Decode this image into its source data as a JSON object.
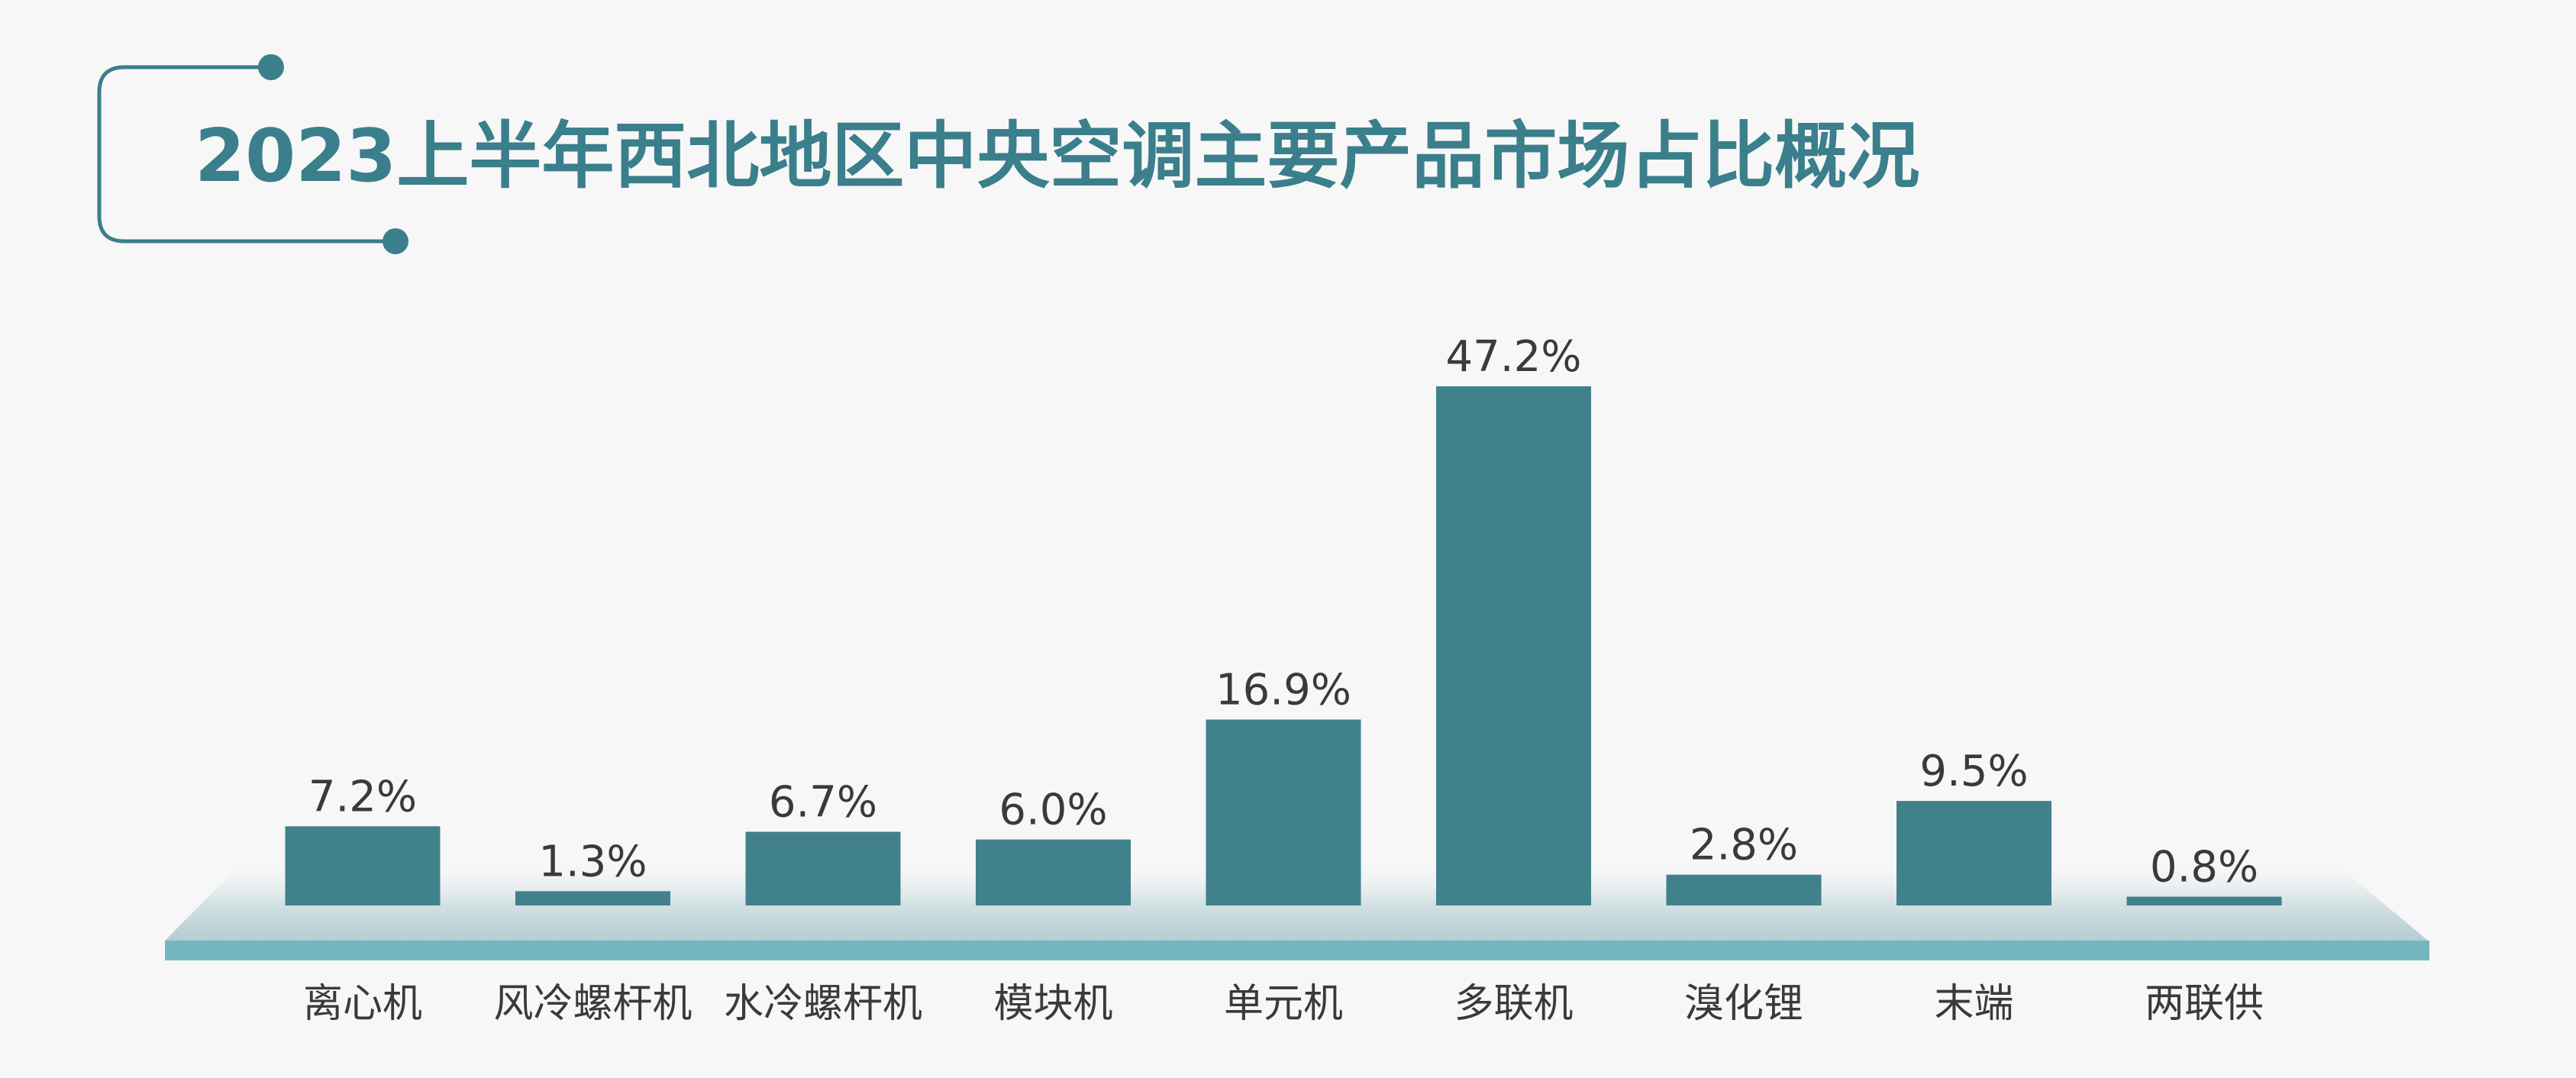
{
  "title": "2023上半年西北地区中央空调主要产品市场占比概况",
  "colors": {
    "background": "#f7f7f7",
    "bar": "#40818c",
    "title": "#3a7f8b",
    "label": "#3a3a3a",
    "platform_bar": "#74b6c0",
    "platform_shadow": "#c3d6d9"
  },
  "chart_data": {
    "type": "bar",
    "title": "2023上半年西北地区中央空调主要产品市场占比概况",
    "categories": [
      "离心机",
      "风冷螺杆机",
      "水冷螺杆机",
      "模块机",
      "单元机",
      "多联机",
      "溴化锂",
      "末端",
      "两联供"
    ],
    "values": [
      7.2,
      1.3,
      6.7,
      6.0,
      16.9,
      47.2,
      2.8,
      9.5,
      0.8
    ],
    "value_labels": [
      "7.2%",
      "1.3%",
      "6.7%",
      "6.0%",
      "16.9%",
      "47.2%",
      "2.8%",
      "9.5%",
      "0.8%"
    ],
    "unit": "%",
    "ylim": [
      0,
      47.2
    ],
    "grid": false,
    "legend": "none"
  }
}
